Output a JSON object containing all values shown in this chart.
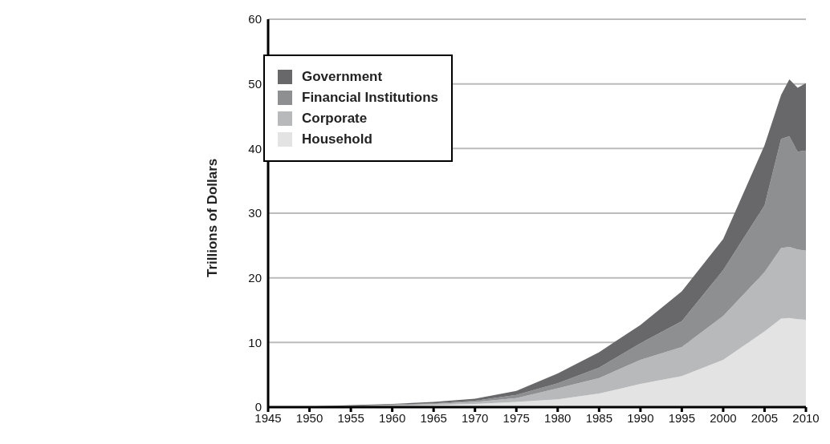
{
  "chart_data": {
    "type": "area",
    "stacked": true,
    "ylabel": "Trillions of Dollars",
    "x": [
      1945,
      1950,
      1955,
      1960,
      1965,
      1970,
      1975,
      1980,
      1985,
      1990,
      1995,
      2000,
      2005,
      2007,
      2008,
      2009,
      2010
    ],
    "series": [
      {
        "name": "Household",
        "color": "#e3e3e3",
        "values": [
          0,
          0.1,
          0.1,
          0.2,
          0.3,
          0.5,
          0.8,
          1.2,
          2.1,
          3.6,
          4.8,
          7.3,
          11.7,
          13.7,
          13.8,
          13.6,
          13.5
        ]
      },
      {
        "name": "Corporate",
        "color": "#b8b9bb",
        "values": [
          0,
          0,
          0.1,
          0.1,
          0.2,
          0.3,
          0.6,
          1.7,
          2.4,
          3.7,
          4.5,
          6.8,
          9.2,
          10.9,
          11.0,
          10.8,
          10.7
        ]
      },
      {
        "name": "Financial Institutions",
        "color": "#8e8f91",
        "values": [
          0,
          0,
          0,
          0.1,
          0.1,
          0.2,
          0.5,
          0.8,
          1.6,
          2.6,
          4.0,
          7.1,
          10.3,
          16.9,
          17.1,
          15.1,
          15.5
        ]
      },
      {
        "name": "Government",
        "color": "#68686a",
        "values": [
          0,
          0,
          0.1,
          0.1,
          0.2,
          0.3,
          0.6,
          1.5,
          2.4,
          2.8,
          4.6,
          4.8,
          9.3,
          6.8,
          8.8,
          9.9,
          10.4
        ]
      }
    ],
    "xlim": [
      1945,
      2010
    ],
    "xticks": [
      1945,
      1950,
      1955,
      1960,
      1965,
      1970,
      1975,
      1980,
      1985,
      1990,
      1995,
      2000,
      2005,
      2010
    ],
    "ylim": [
      0,
      60
    ],
    "yticks": [
      0,
      10,
      20,
      30,
      40,
      50,
      60
    ],
    "grid": "y",
    "legend": "top left"
  }
}
